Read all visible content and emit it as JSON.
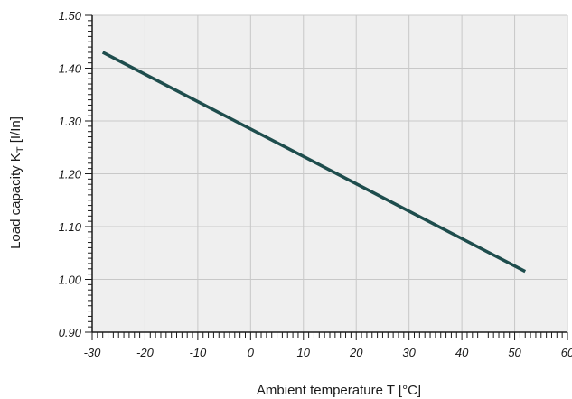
{
  "chart_data": {
    "type": "line",
    "title": "",
    "xlabel": "Ambient temperature T [°C]",
    "ylabel_main": "Load capacity K",
    "ylabel_sub": "T",
    "ylabel_suffix": " [I/In]",
    "xlim": [
      -30,
      60
    ],
    "ylim": [
      0.9,
      1.5
    ],
    "xticks": [
      -30,
      -20,
      -10,
      0,
      10,
      20,
      30,
      40,
      50,
      60
    ],
    "xtick_labels": [
      "-30",
      "-20",
      "-10",
      "0",
      "10",
      "20",
      "30",
      "40",
      "50",
      "60"
    ],
    "yticks": [
      0.9,
      1.0,
      1.1,
      1.2,
      1.3,
      1.4,
      1.5
    ],
    "ytick_labels": [
      "0.90",
      "1.00",
      "1.10",
      "1.20",
      "1.30",
      "1.40",
      "1.50"
    ],
    "grid": true,
    "background_color": "#efefef",
    "grid_color": "#c8c8c8",
    "series": [
      {
        "color": "#1e4d4d",
        "x": [
          -28,
          52
        ],
        "y": [
          1.43,
          1.015
        ]
      }
    ]
  }
}
